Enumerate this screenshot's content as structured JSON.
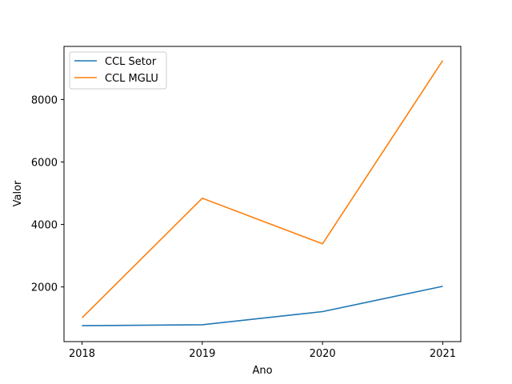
{
  "chart_data": {
    "type": "line",
    "title": "",
    "xlabel": "Ano",
    "ylabel": "Valor",
    "x": [
      2018,
      2019,
      2020,
      2021
    ],
    "x_ticks": [
      "2018",
      "2019",
      "2020",
      "2021"
    ],
    "y_ticks": [
      2000,
      4000,
      6000,
      8000
    ],
    "ylim": [
      250,
      9700
    ],
    "grid": false,
    "legend_position": "top-left",
    "series": [
      {
        "name": "CCL Setor",
        "color": "#1f77b4",
        "values": [
          760,
          790,
          1210,
          2020
        ]
      },
      {
        "name": "CCL MGLU",
        "color": "#ff7f0e",
        "values": [
          1010,
          4840,
          3380,
          9250
        ]
      }
    ]
  }
}
